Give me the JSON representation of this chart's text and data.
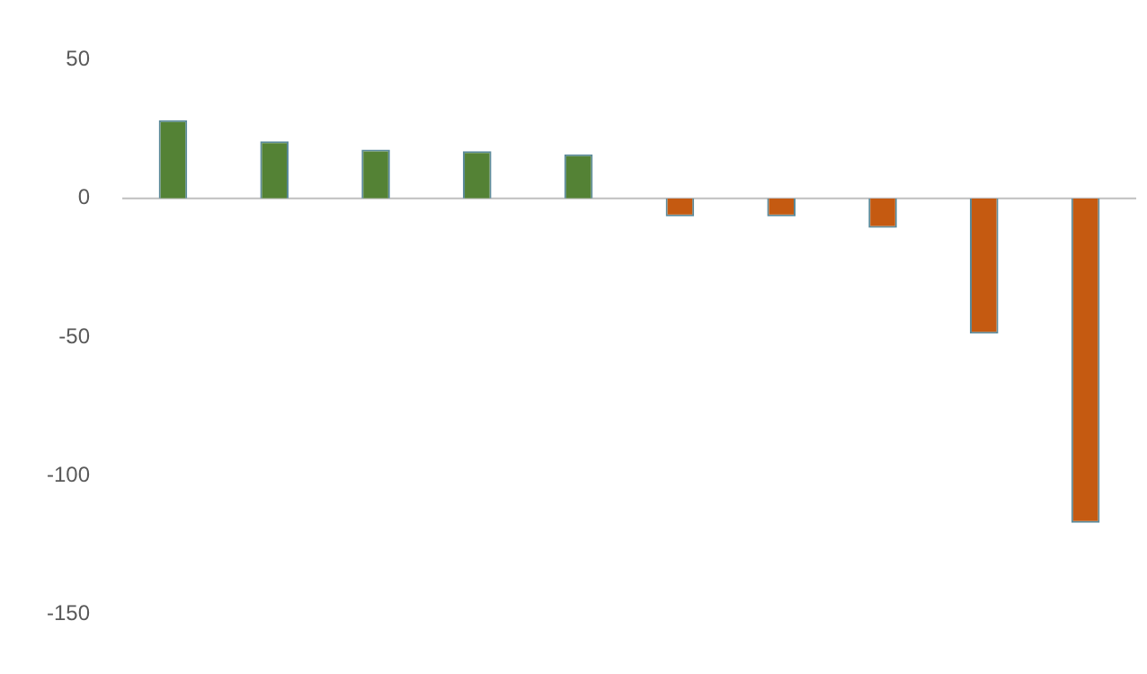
{
  "chart_data": {
    "type": "bar",
    "categories": [
      null,
      null,
      null,
      null,
      null,
      null,
      null,
      null,
      null,
      null
    ],
    "values": [
      28.2,
      20.6,
      17.6,
      17,
      15.9,
      -6.5,
      -6.5,
      -10.6,
      -48.8,
      -117
    ],
    "colors": [
      "#548235",
      "#548235",
      "#548235",
      "#548235",
      "#548235",
      "#c55a11",
      "#c55a11",
      "#c55a11",
      "#c55a11",
      "#c55a11"
    ],
    "ylim": [
      -150,
      50
    ],
    "yticks": [
      -150,
      -100,
      -50,
      0,
      50
    ],
    "grid": false,
    "legend": false,
    "ref_lines": [
      {
        "axis": "y",
        "value": 0,
        "color": "#bfbfbf"
      }
    ]
  }
}
